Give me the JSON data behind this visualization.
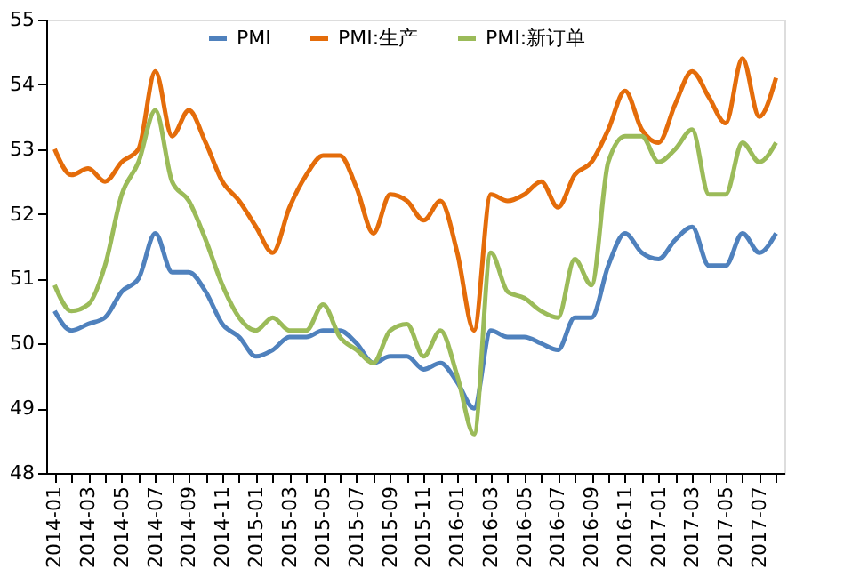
{
  "chart_data": {
    "type": "line",
    "categories": [
      "2014-01",
      null,
      "2014-03",
      null,
      "2014-05",
      null,
      "2014-07",
      null,
      "2014-09",
      null,
      "2014-11",
      null,
      "2015-01",
      null,
      "2015-03",
      null,
      "2015-05",
      null,
      "2015-07",
      null,
      "2015-09",
      null,
      "2015-11",
      null,
      "2016-01",
      null,
      "2016-03",
      null,
      "2016-05",
      null,
      "2016-07",
      null,
      "2016-09",
      null,
      "2016-11",
      null,
      "2017-01",
      null,
      "2017-03",
      null,
      "2017-05",
      null,
      "2017-07",
      null
    ],
    "series": [
      {
        "name": "PMI",
        "color": "#4f81bd",
        "values": [
          50.5,
          50.2,
          50.3,
          50.4,
          50.8,
          51.0,
          51.7,
          51.1,
          51.1,
          50.8,
          50.3,
          50.1,
          49.8,
          49.9,
          50.1,
          50.1,
          50.2,
          50.2,
          50.0,
          49.7,
          49.8,
          49.8,
          49.6,
          49.7,
          49.4,
          49.0,
          50.2,
          50.1,
          50.1,
          50.0,
          49.9,
          50.4,
          50.4,
          51.2,
          51.7,
          51.4,
          51.3,
          51.6,
          51.8,
          51.2,
          51.2,
          51.7,
          51.4,
          51.7
        ]
      },
      {
        "name": "PMI:生产",
        "color": "#e46c0a",
        "values": [
          53.0,
          52.6,
          52.7,
          52.5,
          52.8,
          53.0,
          54.2,
          53.2,
          53.6,
          53.1,
          52.5,
          52.2,
          51.8,
          51.4,
          52.1,
          52.6,
          52.9,
          52.9,
          52.4,
          51.7,
          52.3,
          52.2,
          51.9,
          52.2,
          51.4,
          50.2,
          52.3,
          52.2,
          52.3,
          52.5,
          52.1,
          52.6,
          52.8,
          53.3,
          53.9,
          53.3,
          53.1,
          53.7,
          54.2,
          53.8,
          53.4,
          54.4,
          53.5,
          54.1
        ]
      },
      {
        "name": "PMI:新订单",
        "color": "#9bbb59",
        "values": [
          50.9,
          50.5,
          50.6,
          51.2,
          52.3,
          52.8,
          53.6,
          52.5,
          52.2,
          51.6,
          50.9,
          50.4,
          50.2,
          50.4,
          50.2,
          50.2,
          50.6,
          50.1,
          49.9,
          49.7,
          50.2,
          50.3,
          49.8,
          50.2,
          49.5,
          48.6,
          51.4,
          50.8,
          50.7,
          50.5,
          50.4,
          51.3,
          50.9,
          52.8,
          53.2,
          53.2,
          52.8,
          53.0,
          53.3,
          52.3,
          52.3,
          53.1,
          52.8,
          53.1
        ]
      }
    ],
    "ylim": [
      48,
      55
    ],
    "yticks": [
      48,
      49,
      50,
      51,
      52,
      53,
      54,
      55
    ],
    "grid": false,
    "legend": "top",
    "marker": "none",
    "line_style": "solid"
  }
}
